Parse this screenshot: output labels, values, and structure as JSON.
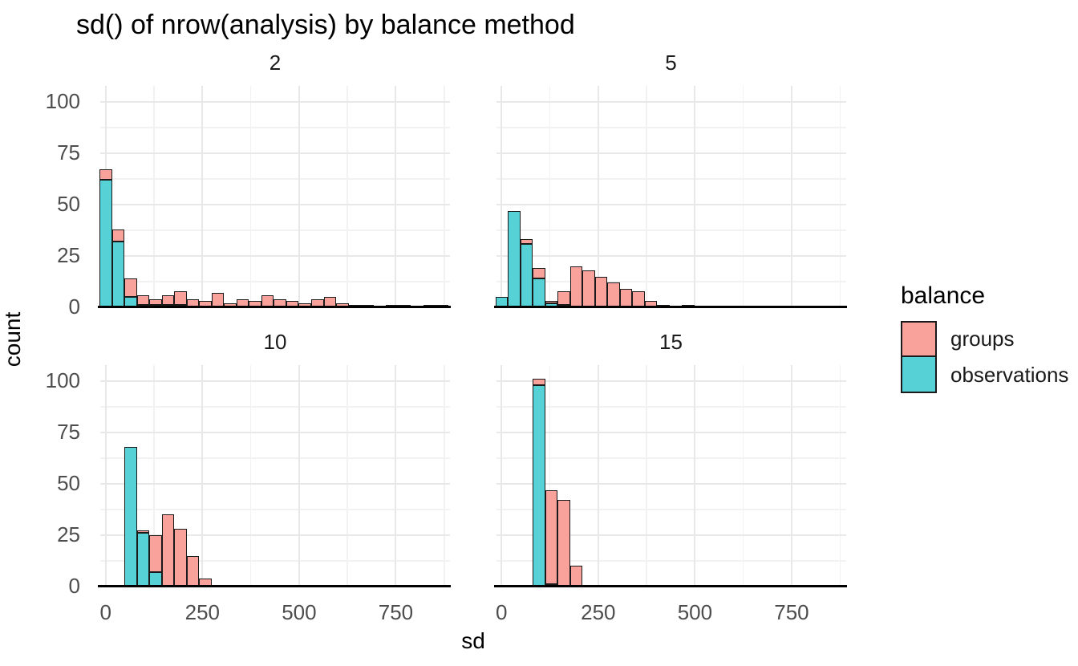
{
  "title": "sd() of nrow(analysis) by balance method",
  "axes": {
    "x_title": "sd",
    "y_title": "count",
    "x_major_ticks": [
      0,
      250,
      500,
      750
    ],
    "x_minor_ticks": [
      125,
      375,
      625,
      875
    ],
    "y_major_ticks": [
      0,
      25,
      50,
      75,
      100
    ],
    "y_minor_ticks": [
      12.5,
      37.5,
      62.5,
      87.5
    ],
    "x_range": [
      -14,
      890
    ],
    "y_range": [
      0,
      107.7
    ]
  },
  "legend": {
    "title": "balance",
    "entries": [
      {
        "name": "groups",
        "label": "groups",
        "color": "#F8A29B"
      },
      {
        "name": "observations",
        "label": "observations",
        "color": "#56D2D6"
      }
    ]
  },
  "style": {
    "groups_fill": "#F8A29B",
    "observations_fill": "#56D2D6",
    "bar_stroke": "#1A1A1A",
    "grid_major": "#E8E8E8",
    "grid_minor": "#F2F2F2",
    "axis_line": "#000000",
    "tick_label_color": "#4D4D4D",
    "strip_label_color": "#1A1A1A"
  },
  "chart_data": {
    "type": "bar",
    "subtype": "stacked-histogram",
    "facet_title_values": [
      "2",
      "5",
      "10",
      "15"
    ],
    "stack_order_bottom_to_top": [
      "observations",
      "groups"
    ],
    "binwidth": 32.2,
    "bin_centers": [
      0,
      32.2,
      64.4,
      96.6,
      128.8,
      161,
      193.2,
      225.4,
      257.6,
      289.8,
      322,
      354.2,
      386.4,
      418.6,
      450.8,
      483,
      515.2,
      547.4,
      579.6,
      611.8,
      644,
      676.2,
      708.4,
      740.6,
      772.8,
      805,
      837.2,
      869.4
    ],
    "facets": [
      {
        "label": "2",
        "observations": [
          62,
          32,
          5,
          1,
          1,
          1,
          1,
          0,
          0,
          0,
          0,
          0,
          0,
          0,
          0,
          0,
          0,
          0,
          0,
          0,
          0,
          0,
          0,
          0,
          0,
          0,
          0,
          0
        ],
        "groups": [
          5,
          6,
          9,
          5,
          3,
          5,
          7,
          4,
          3,
          7,
          2,
          4,
          3,
          6,
          4,
          3,
          2,
          4,
          5,
          2,
          1,
          1,
          0,
          1,
          1,
          0,
          1,
          1
        ]
      },
      {
        "label": "5",
        "observations": [
          5,
          47,
          31,
          14,
          2,
          1,
          0,
          0,
          0,
          0,
          0,
          0,
          0,
          0,
          0,
          0
        ],
        "groups": [
          0,
          0,
          2,
          5,
          1,
          7,
          20,
          18,
          15,
          12,
          9,
          8,
          3,
          1,
          0,
          1
        ]
      },
      {
        "label": "10",
        "observations": [
          0,
          0,
          68,
          26,
          7,
          0,
          0,
          0,
          0
        ],
        "groups": [
          0,
          0,
          0,
          1,
          18,
          35,
          28,
          15,
          4
        ]
      },
      {
        "label": "15",
        "observations": [
          0,
          0,
          0,
          98,
          1,
          0,
          0
        ],
        "groups": [
          0,
          0,
          0,
          3,
          46,
          42,
          10
        ]
      }
    ]
  }
}
